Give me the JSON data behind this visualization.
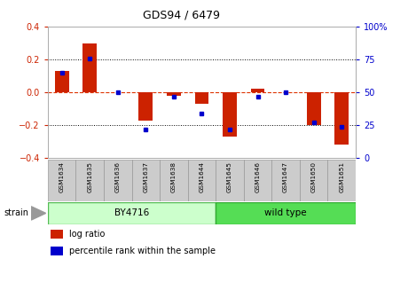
{
  "title": "GDS94 / 6479",
  "samples": [
    "GSM1634",
    "GSM1635",
    "GSM1636",
    "GSM1637",
    "GSM1638",
    "GSM1644",
    "GSM1645",
    "GSM1646",
    "GSM1647",
    "GSM1650",
    "GSM1651"
  ],
  "log_ratio": [
    0.13,
    0.3,
    0.0,
    -0.17,
    -0.02,
    -0.07,
    -0.27,
    0.02,
    0.0,
    -0.2,
    -0.32
  ],
  "percentile_rank": [
    65,
    76,
    50,
    22,
    47,
    34,
    22,
    47,
    50,
    27,
    24
  ],
  "ylim_left": [
    -0.4,
    0.4
  ],
  "ylim_right": [
    0,
    100
  ],
  "yticks_left": [
    -0.4,
    -0.2,
    0.0,
    0.2,
    0.4
  ],
  "yticks_right": [
    0,
    25,
    50,
    75,
    100
  ],
  "bar_color": "#cc2200",
  "dot_color": "#0000cc",
  "zero_line_color": "#dd3300",
  "dotted_line_color": "#000000",
  "background_color": "#ffffff",
  "plot_bg_color": "#ffffff",
  "n_by4716": 6,
  "n_wildtype": 5,
  "by4716_label": "BY4716",
  "wild_type_label": "wild type",
  "strain_label": "strain",
  "legend_log_ratio": "log ratio",
  "legend_percentile": "percentile rank within the sample",
  "by4716_facecolor": "#ccffcc",
  "by4716_edgecolor": "#55bb55",
  "wildtype_facecolor": "#55dd55",
  "wildtype_edgecolor": "#33aa33",
  "xlabel_box_facecolor": "#cccccc",
  "xlabel_box_edgecolor": "#999999",
  "strain_arrow_color": "#999999"
}
